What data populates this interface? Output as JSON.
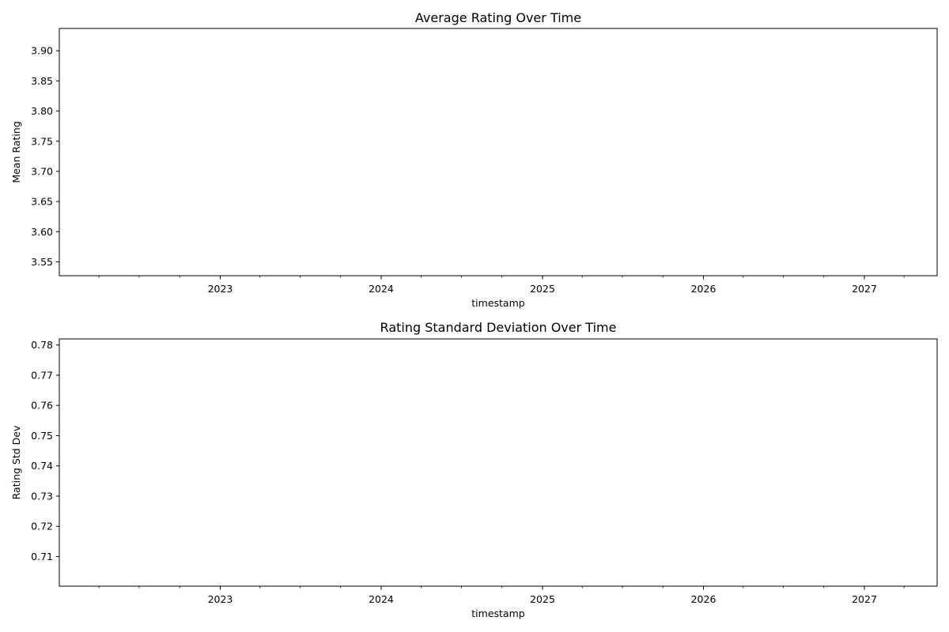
{
  "chart_data": [
    {
      "type": "line",
      "title": "Average Rating Over Time",
      "xlabel": "timestamp",
      "ylabel": "Mean Rating",
      "xlim": [
        "2022-01-01",
        "2027-06-15"
      ],
      "ylim": [
        3.527,
        3.937
      ],
      "x_major_ticks": [
        "2023",
        "2024",
        "2025",
        "2026",
        "2027"
      ],
      "y_ticks": [
        "3.55",
        "3.60",
        "3.65",
        "3.70",
        "3.75",
        "3.80",
        "3.85",
        "3.90"
      ],
      "series": [],
      "grid": false
    },
    {
      "type": "line",
      "title": "Rating Standard Deviation Over Time",
      "xlabel": "timestamp",
      "ylabel": "Rating Std Dev",
      "xlim": [
        "2022-01-01",
        "2027-06-15"
      ],
      "ylim": [
        0.7002,
        0.782
      ],
      "x_major_ticks": [
        "2023",
        "2024",
        "2025",
        "2026",
        "2027"
      ],
      "y_ticks": [
        "0.71",
        "0.72",
        "0.73",
        "0.74",
        "0.75",
        "0.76",
        "0.77",
        "0.78"
      ],
      "series": [],
      "grid": false
    }
  ]
}
